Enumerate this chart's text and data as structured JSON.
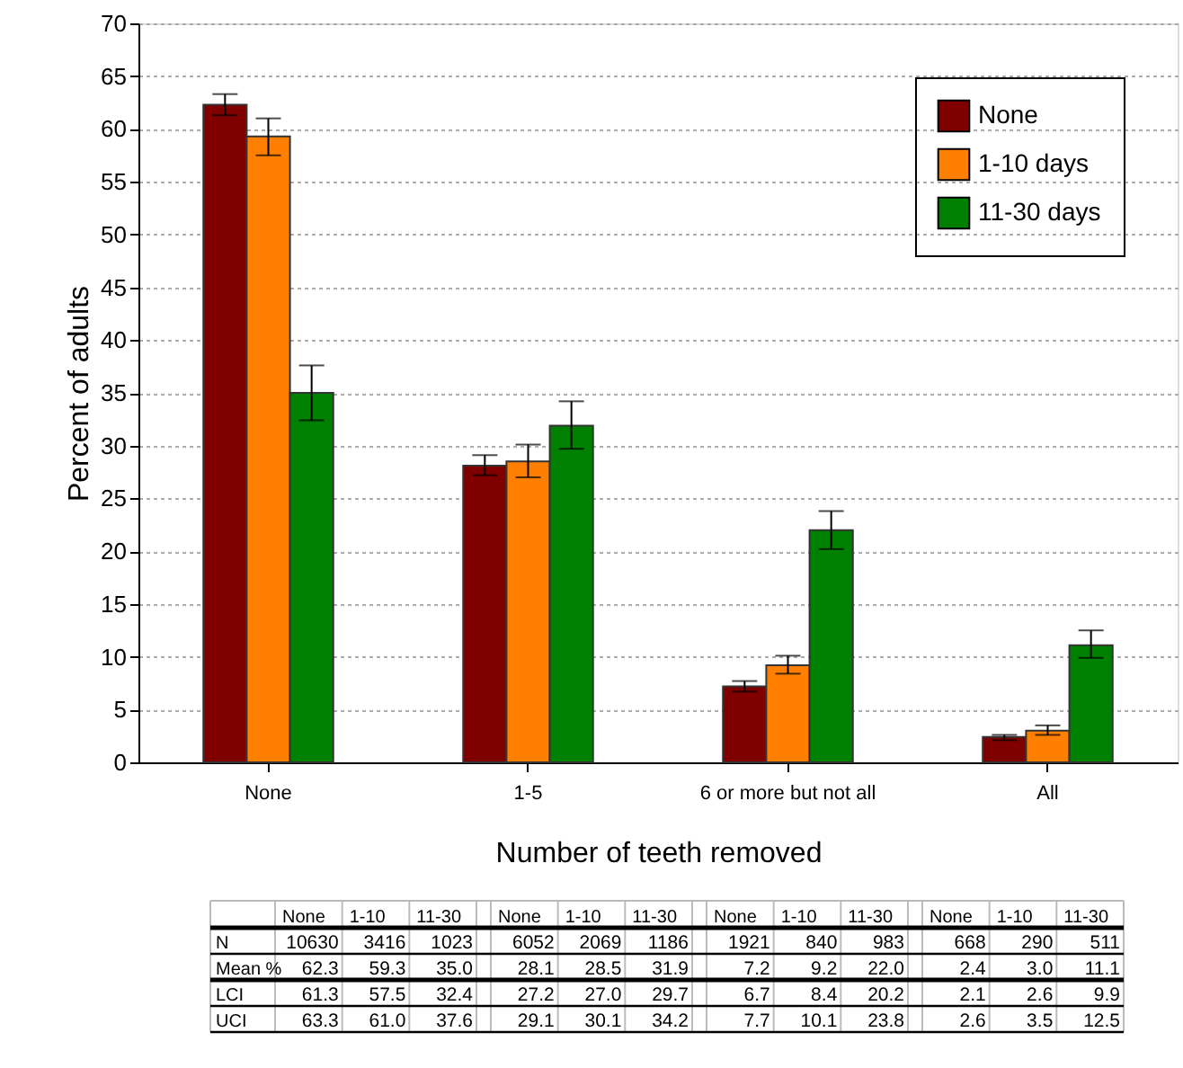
{
  "chart_data": {
    "type": "bar",
    "xlabel": "Number of teeth removed",
    "ylabel": "Percent of adults",
    "categories": [
      "None",
      "1-5",
      "6 or more but not all",
      "All"
    ],
    "series": [
      {
        "name": "None",
        "color": "#800000",
        "values": [
          62.3,
          28.1,
          7.2,
          2.4
        ],
        "errors": [
          [
            61.3,
            63.3
          ],
          [
            27.2,
            29.1
          ],
          [
            6.7,
            7.7
          ],
          [
            2.1,
            2.6
          ]
        ]
      },
      {
        "name": "1-10 days",
        "color": "#ff8000",
        "values": [
          59.3,
          28.5,
          9.2,
          3.0
        ],
        "errors": [
          [
            57.5,
            61.0
          ],
          [
            27.0,
            30.1
          ],
          [
            8.4,
            10.1
          ],
          [
            2.6,
            3.5
          ]
        ]
      },
      {
        "name": "11-30 days",
        "color": "#008000",
        "values": [
          35.0,
          31.9,
          22.0,
          11.1
        ],
        "errors": [
          [
            32.4,
            37.6
          ],
          [
            29.7,
            34.2
          ],
          [
            20.2,
            23.8
          ],
          [
            9.9,
            12.5
          ]
        ]
      }
    ],
    "ylim": [
      0,
      70
    ],
    "yticks": [
      0,
      5,
      10,
      15,
      20,
      25,
      30,
      35,
      40,
      45,
      50,
      55,
      60,
      65,
      70
    ],
    "grid": "y",
    "legend": "top right",
    "annotations": [
      "N",
      "Mean %",
      "LCI",
      "UCI",
      "None",
      "1-10",
      "11-30",
      "10630",
      "3416",
      "1023",
      "6052",
      "2069",
      "1186",
      "1921",
      "840",
      "983",
      "668",
      "290",
      "511",
      "62.3",
      "59.3",
      "35.0",
      "28.1",
      "28.5",
      "31.9",
      "7.2",
      "9.2",
      "22.0",
      "2.4",
      "3.0",
      "11.1",
      "61.3",
      "57.5",
      "32.4",
      "27.2",
      "27.0",
      "29.7",
      "6.7",
      "8.4",
      "20.2",
      "2.1",
      "2.6",
      "9.9",
      "63.3",
      "61.0",
      "37.6",
      "29.1",
      "30.1",
      "34.2",
      "7.7",
      "10.1",
      "23.8",
      "2.6",
      "3.5",
      "12.5"
    ]
  }
}
